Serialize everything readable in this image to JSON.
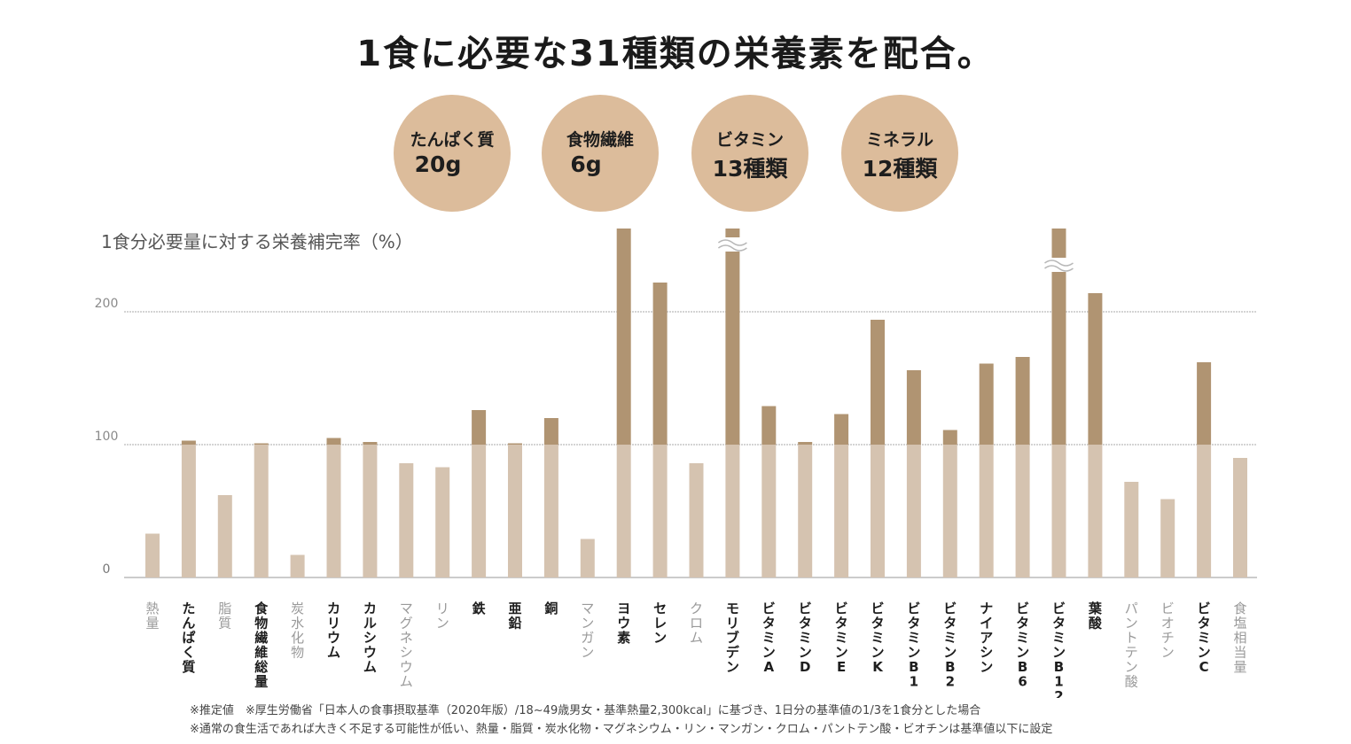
{
  "header": {
    "title": "1食に必要な31種類の栄養素を配合。"
  },
  "highlights": [
    {
      "label": "たんぱく質",
      "value": "20g"
    },
    {
      "label": "食物繊維",
      "value": "6g"
    },
    {
      "label": "ビタミン",
      "value": "13種類"
    },
    {
      "label": "ミネラル",
      "value": "12種類"
    }
  ],
  "chart_data": {
    "type": "bar",
    "ylabel": "1食分必要量に対する栄養補完率（%）",
    "yticks": [
      "200",
      "100",
      "0"
    ],
    "ylim": [
      0,
      270
    ],
    "reference_line": 100,
    "categories": [
      "熱量",
      "たんぱく質",
      "脂質",
      "食物繊維総量",
      "炭水化物",
      "カリウム",
      "カルシウム",
      "マグネシウム",
      "リン",
      "鉄",
      "亜鉛",
      "銅",
      "マンガン",
      "ヨウ素",
      "セレン",
      "クロム",
      "モリブデン",
      "ビタミンA",
      "ビタミンD",
      "ビタミンE",
      "ビタミンK",
      "ビタミンB1",
      "ビタミンB2",
      "ナイアシン",
      "ビタミンB6",
      "ビタミンB12",
      "葉酸",
      "パントテン酸",
      "ビオチン",
      "ビタミンC",
      "食塩相当量"
    ],
    "values": [
      33,
      103,
      62,
      101,
      17,
      105,
      102,
      86,
      83,
      126,
      101,
      120,
      29,
      265,
      222,
      86,
      265,
      129,
      102,
      123,
      194,
      156,
      111,
      161,
      166,
      265,
      214,
      72,
      59,
      162,
      90
    ],
    "truncated": [
      "モリブデン",
      "ビタミンB12"
    ],
    "label_emphasis": [
      false,
      true,
      false,
      true,
      false,
      true,
      true,
      false,
      false,
      true,
      true,
      true,
      false,
      true,
      true,
      false,
      true,
      true,
      true,
      true,
      true,
      true,
      true,
      true,
      true,
      true,
      true,
      false,
      false,
      true,
      false
    ],
    "colors": {
      "below": "#d5c3b0",
      "above": "#b09472",
      "grid": "#aaaaaa",
      "axis_text": "#8a8a8a"
    }
  },
  "notes": [
    "※推定値　※厚生労働省「日本人の食事摂取基準（2020年版）/18~49歳男女・基準熱量2,300kcal」に基づき、1日分の基準値の1/3を1食分とした場合",
    "※通常の食生活であれば大きく不足する可能性が低い、熱量・脂質・炭水化物・マグネシウム・リン・マンガン・クロム・パントテン酸・ビオチンは基準値以下に設定"
  ]
}
